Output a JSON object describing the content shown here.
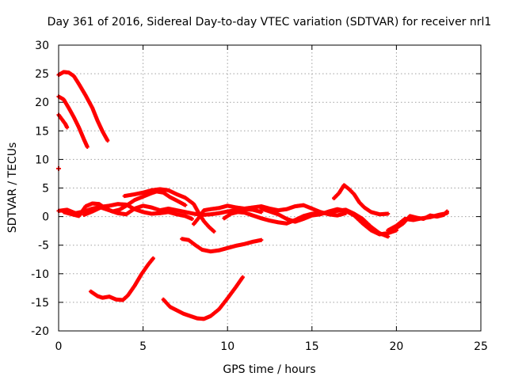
{
  "chart_data": {
    "type": "scatter",
    "title": "Day 361 of 2016, Sidereal Day-to-day VTEC variation (SDTVAR) for receiver nrl1",
    "xlabel": "GPS time / hours",
    "ylabel": "SDTVAR / TECUs",
    "xlim": [
      0,
      25
    ],
    "ylim": [
      -20,
      30
    ],
    "xticks": [
      0,
      5,
      10,
      15,
      20,
      25
    ],
    "yticks": [
      -20,
      -15,
      -10,
      -5,
      0,
      5,
      10,
      15,
      20,
      25,
      30
    ],
    "grid": true,
    "marker_color": "#ff0000",
    "series": [
      {
        "name": "arc-top",
        "points": [
          [
            0.0,
            24.8
          ],
          [
            0.3,
            25.3
          ],
          [
            0.6,
            25.2
          ],
          [
            0.9,
            24.6
          ],
          [
            1.2,
            23.2
          ],
          [
            1.6,
            21.2
          ],
          [
            2.0,
            19.0
          ],
          [
            2.3,
            16.8
          ],
          [
            2.6,
            14.9
          ],
          [
            2.9,
            13.3
          ]
        ]
      },
      {
        "name": "arc-21",
        "points": [
          [
            0.0,
            21.0
          ],
          [
            0.3,
            20.5
          ],
          [
            0.6,
            19.0
          ],
          [
            0.9,
            17.4
          ],
          [
            1.2,
            15.6
          ],
          [
            1.5,
            13.5
          ],
          [
            1.7,
            12.2
          ]
        ]
      },
      {
        "name": "arc-18",
        "points": [
          [
            0.0,
            17.8
          ],
          [
            0.2,
            17.0
          ],
          [
            0.4,
            16.2
          ],
          [
            0.5,
            15.6
          ]
        ]
      },
      {
        "name": "dot-8",
        "points": [
          [
            0.0,
            8.4
          ]
        ]
      },
      {
        "name": "base-0",
        "points": [
          [
            0.0,
            1.0
          ],
          [
            0.5,
            1.2
          ],
          [
            1.0,
            0.6
          ],
          [
            1.5,
            0.9
          ],
          [
            2.0,
            1.4
          ],
          [
            2.5,
            1.7
          ],
          [
            3.0,
            1.9
          ],
          [
            3.5,
            2.2
          ],
          [
            4.0,
            2.1
          ],
          [
            4.5,
            1.3
          ],
          [
            5.0,
            0.8
          ],
          [
            5.5,
            0.5
          ],
          [
            6.0,
            0.6
          ],
          [
            6.5,
            0.8
          ],
          [
            7.0,
            0.4
          ],
          [
            7.5,
            0.1
          ],
          [
            7.9,
            -0.4
          ]
        ]
      },
      {
        "name": "base-1",
        "points": [
          [
            0.3,
            0.8
          ],
          [
            0.8,
            0.4
          ],
          [
            1.2,
            0.1
          ],
          [
            1.6,
            1.8
          ],
          [
            2.0,
            2.3
          ],
          [
            2.4,
            2.2
          ],
          [
            2.8,
            1.4
          ],
          [
            3.2,
            0.9
          ],
          [
            3.6,
            1.2
          ],
          [
            4.0,
            1.9
          ],
          [
            4.5,
            2.9
          ],
          [
            5.0,
            3.5
          ],
          [
            5.5,
            4.1
          ],
          [
            5.8,
            4.4
          ],
          [
            6.2,
            4.2
          ],
          [
            6.6,
            3.4
          ],
          [
            7.0,
            2.8
          ],
          [
            7.5,
            2.0
          ]
        ]
      },
      {
        "name": "base-2",
        "points": [
          [
            3.9,
            3.6
          ],
          [
            4.5,
            3.9
          ],
          [
            5.0,
            4.2
          ],
          [
            5.5,
            4.6
          ],
          [
            6.0,
            4.8
          ],
          [
            6.5,
            4.6
          ],
          [
            7.0,
            3.9
          ],
          [
            7.5,
            3.3
          ],
          [
            8.0,
            2.2
          ],
          [
            8.3,
            0.6
          ],
          [
            8.6,
            -0.8
          ],
          [
            8.9,
            -1.8
          ],
          [
            9.2,
            -2.6
          ]
        ]
      },
      {
        "name": "base-3",
        "points": [
          [
            1.5,
            0.3
          ],
          [
            2.0,
            0.9
          ],
          [
            2.5,
            1.6
          ],
          [
            3.0,
            1.1
          ],
          [
            3.5,
            0.6
          ],
          [
            4.0,
            0.4
          ],
          [
            4.5,
            1.4
          ],
          [
            5.0,
            1.9
          ],
          [
            5.5,
            1.6
          ],
          [
            6.0,
            1.1
          ],
          [
            6.5,
            1.4
          ],
          [
            7.0,
            1.1
          ],
          [
            7.5,
            0.8
          ],
          [
            8.0,
            0.5
          ],
          [
            8.5,
            0.3
          ],
          [
            9.0,
            0.4
          ],
          [
            9.5,
            0.6
          ],
          [
            10.0,
            0.9
          ],
          [
            10.5,
            1.1
          ],
          [
            11.0,
            1.3
          ],
          [
            11.5,
            1.2
          ],
          [
            12.0,
            0.8
          ]
        ]
      },
      {
        "name": "base-4",
        "points": [
          [
            8.0,
            -1.3
          ],
          [
            8.3,
            -0.2
          ],
          [
            8.6,
            1.1
          ],
          [
            9.0,
            1.3
          ],
          [
            9.5,
            1.5
          ],
          [
            10.0,
            1.9
          ],
          [
            10.5,
            1.6
          ],
          [
            11.0,
            1.4
          ],
          [
            11.5,
            1.6
          ],
          [
            12.0,
            1.8
          ],
          [
            12.5,
            1.4
          ],
          [
            13.0,
            1.1
          ],
          [
            13.5,
            1.3
          ],
          [
            14.0,
            1.8
          ],
          [
            14.5,
            2.0
          ],
          [
            15.0,
            1.4
          ],
          [
            15.5,
            0.8
          ],
          [
            16.0,
            0.4
          ],
          [
            16.5,
            0.2
          ],
          [
            17.0,
            0.6
          ]
        ]
      },
      {
        "name": "base-5",
        "points": [
          [
            9.8,
            -0.3
          ],
          [
            10.2,
            0.5
          ],
          [
            10.6,
            0.8
          ],
          [
            11.0,
            0.7
          ],
          [
            11.5,
            0.2
          ],
          [
            12.0,
            -0.3
          ],
          [
            12.5,
            -0.7
          ],
          [
            13.0,
            -1.0
          ],
          [
            13.5,
            -1.2
          ],
          [
            14.0,
            -0.6
          ],
          [
            14.5,
            0.1
          ],
          [
            15.0,
            0.5
          ],
          [
            15.5,
            0.6
          ],
          [
            16.0,
            0.7
          ],
          [
            16.5,
            1.0
          ],
          [
            17.0,
            1.2
          ],
          [
            17.5,
            0.5
          ],
          [
            18.0,
            -0.4
          ],
          [
            18.5,
            -1.8
          ],
          [
            19.0,
            -2.9
          ],
          [
            19.5,
            -3.5
          ]
        ]
      },
      {
        "name": "base-6",
        "points": [
          [
            12.0,
            1.4
          ],
          [
            12.5,
            0.9
          ],
          [
            13.0,
            0.4
          ],
          [
            13.5,
            -0.4
          ],
          [
            14.0,
            -0.9
          ],
          [
            14.5,
            -0.4
          ],
          [
            15.0,
            0.2
          ],
          [
            15.5,
            0.4
          ],
          [
            16.0,
            0.9
          ],
          [
            16.5,
            1.3
          ],
          [
            17.0,
            1.0
          ],
          [
            17.5,
            0.2
          ],
          [
            18.0,
            -1.2
          ],
          [
            18.5,
            -2.4
          ],
          [
            19.0,
            -3.1
          ],
          [
            19.5,
            -2.9
          ],
          [
            20.0,
            -2.4
          ]
        ]
      },
      {
        "name": "base-7",
        "points": [
          [
            19.5,
            -2.4
          ],
          [
            20.0,
            -1.6
          ],
          [
            20.5,
            -0.4
          ],
          [
            21.0,
            -0.6
          ],
          [
            21.5,
            -0.3
          ],
          [
            22.0,
            -0.1
          ],
          [
            22.5,
            0.3
          ],
          [
            23.0,
            0.6
          ]
        ]
      },
      {
        "name": "base-8",
        "points": [
          [
            20.0,
            -2.0
          ],
          [
            20.4,
            -1.2
          ],
          [
            20.8,
            0.1
          ],
          [
            21.2,
            -0.2
          ],
          [
            21.6,
            -0.4
          ],
          [
            22.0,
            0.2
          ],
          [
            22.4,
            0.0
          ],
          [
            22.8,
            0.3
          ],
          [
            23.0,
            0.9
          ]
        ]
      },
      {
        "name": "hump-17",
        "points": [
          [
            16.3,
            3.2
          ],
          [
            16.6,
            4.1
          ],
          [
            16.9,
            5.5
          ],
          [
            17.2,
            4.8
          ],
          [
            17.5,
            3.9
          ],
          [
            17.8,
            2.5
          ],
          [
            18.1,
            1.6
          ],
          [
            18.5,
            0.8
          ],
          [
            19.0,
            0.4
          ],
          [
            19.5,
            0.5
          ]
        ]
      },
      {
        "name": "neg-5",
        "points": [
          [
            7.3,
            -3.9
          ],
          [
            7.7,
            -4.1
          ],
          [
            8.1,
            -5.0
          ],
          [
            8.5,
            -5.8
          ],
          [
            9.0,
            -6.1
          ],
          [
            9.5,
            -5.9
          ],
          [
            10.0,
            -5.5
          ],
          [
            10.5,
            -5.1
          ],
          [
            11.0,
            -4.8
          ],
          [
            11.5,
            -4.4
          ],
          [
            12.0,
            -4.1
          ]
        ]
      },
      {
        "name": "neg-10",
        "points": [
          [
            1.9,
            -13.1
          ],
          [
            2.3,
            -13.9
          ],
          [
            2.6,
            -14.2
          ],
          [
            3.0,
            -14.0
          ],
          [
            3.4,
            -14.5
          ],
          [
            3.8,
            -14.6
          ],
          [
            4.1,
            -13.8
          ],
          [
            4.5,
            -12.1
          ],
          [
            4.9,
            -10.1
          ],
          [
            5.3,
            -8.4
          ],
          [
            5.6,
            -7.3
          ]
        ]
      },
      {
        "name": "neg-17",
        "points": [
          [
            6.2,
            -14.5
          ],
          [
            6.6,
            -15.8
          ],
          [
            7.0,
            -16.4
          ],
          [
            7.4,
            -17.0
          ],
          [
            7.8,
            -17.4
          ],
          [
            8.2,
            -17.8
          ],
          [
            8.6,
            -17.9
          ],
          [
            9.0,
            -17.4
          ],
          [
            9.5,
            -16.2
          ],
          [
            10.0,
            -14.3
          ],
          [
            10.5,
            -12.3
          ],
          [
            10.9,
            -10.6
          ]
        ]
      }
    ]
  }
}
